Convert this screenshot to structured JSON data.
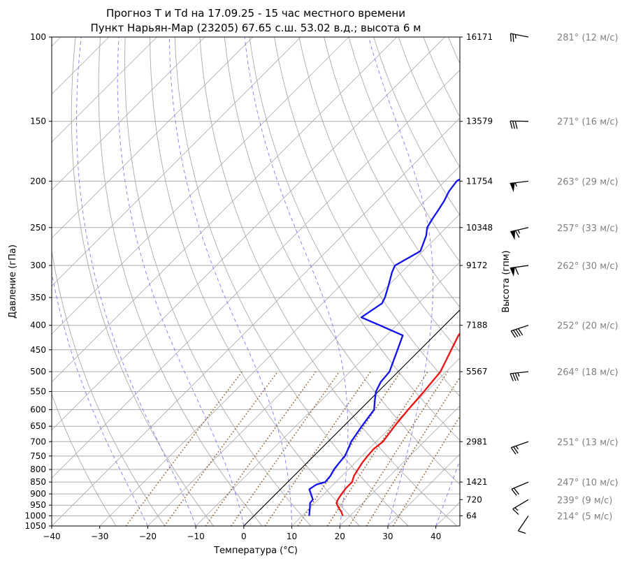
{
  "chart_data": {
    "type": "line",
    "title": "Прогноз T и Td на 17.09.25 - 15 час местного времени",
    "subtitle": "Пункт Нарьян-Мар (23205) 67.65 с.ш. 53.02 в.д.; высота 6 м",
    "xlabel": "Температура (°C)",
    "ylabel": "Давление (гПа)",
    "ylabel_right": "Высота (гпм)",
    "xlim": [
      -40,
      45
    ],
    "ylim": [
      1050,
      100
    ],
    "y_scale": "log",
    "x_ticks": [
      "−40",
      "−30",
      "−20",
      "−10",
      "0",
      "10",
      "20",
      "30",
      "40"
    ],
    "x_tick_values": [
      -40,
      -30,
      -20,
      -10,
      0,
      10,
      20,
      30,
      40
    ],
    "y_ticks": [
      "100",
      "150",
      "200",
      "250",
      "300",
      "350",
      "400",
      "450",
      "500",
      "550",
      "600",
      "650",
      "700",
      "750",
      "800",
      "850",
      "900",
      "950",
      "1000",
      "1050"
    ],
    "y_tick_values": [
      100,
      150,
      200,
      250,
      300,
      350,
      400,
      450,
      500,
      550,
      600,
      650,
      700,
      750,
      800,
      850,
      900,
      950,
      1000,
      1050
    ],
    "skew": 1,
    "grid": true,
    "series": [
      {
        "type": "line",
        "color": "#ee1111",
        "p": [
          1000,
          980,
          960,
          940,
          925,
          900,
          875,
          850,
          825,
          800,
          775,
          750,
          725,
          700,
          650,
          600,
          550,
          500,
          450,
          420,
          400,
          380,
          350,
          320,
          300,
          280,
          260,
          250,
          240,
          230,
          225,
          210,
          200,
          185,
          175,
          165,
          150,
          140,
          130,
          120,
          110,
          100
        ],
        "t": [
          18.5,
          17.3,
          15.8,
          14.5,
          14.1,
          13.7,
          13.4,
          13.4,
          12.5,
          12.0,
          11.5,
          11.2,
          11.0,
          11.4,
          10.6,
          10.0,
          9.5,
          8.8,
          6.5,
          5.0,
          4.5,
          3.5,
          1.3,
          -1.0,
          -3.0,
          -5.0,
          -7.4,
          -9.0,
          -10.5,
          -11.5,
          -11.0,
          -9.0,
          -7.7,
          -6.0,
          -5.3,
          -4.0,
          -4.0,
          -3.0,
          -2.0,
          0.0,
          1.5,
          3.0
        ]
      },
      {
        "type": "line",
        "color": "#1111ee",
        "p": [
          1000,
          980,
          960,
          940,
          925,
          900,
          880,
          860,
          850,
          825,
          800,
          775,
          750,
          725,
          700,
          650,
          600,
          575,
          550,
          525,
          500,
          450,
          420,
          400,
          385,
          360,
          350,
          330,
          310,
          300,
          280,
          260,
          250,
          240,
          230,
          220,
          210,
          200,
          190,
          180,
          170,
          150,
          140,
          130,
          120,
          110,
          100
        ],
        "t": [
          11.5,
          10.7,
          9.9,
          9.0,
          8.9,
          7.3,
          6.0,
          6.5,
          7.8,
          7.6,
          7.0,
          6.7,
          6.5,
          5.7,
          4.8,
          3.8,
          2.9,
          1.2,
          -0.5,
          -1.5,
          -1.8,
          -4.7,
          -6.6,
          -13.5,
          -19.0,
          -17.6,
          -18.2,
          -20.0,
          -22.0,
          -22.8,
          -20.5,
          -22.5,
          -24.0,
          -24.7,
          -25.3,
          -26.0,
          -27.0,
          -27.5,
          -26.0,
          -24.0,
          -22.7,
          -20.0,
          -19.0,
          -18.0,
          -18.0,
          -17.8,
          -16.0
        ]
      }
    ],
    "heights": [
      {
        "p": 100,
        "label": "16171"
      },
      {
        "p": 150,
        "label": "13579"
      },
      {
        "p": 200,
        "label": "11754"
      },
      {
        "p": 250,
        "label": "10348"
      },
      {
        "p": 300,
        "label": "9172"
      },
      {
        "p": 400,
        "label": "7188"
      },
      {
        "p": 500,
        "label": "5567"
      },
      {
        "p": 700,
        "label": "2981"
      },
      {
        "p": 850,
        "label": "1421"
      },
      {
        "p": 925,
        "label": "720"
      },
      {
        "p": 1000,
        "label": "64"
      }
    ],
    "winds": [
      {
        "p": 100,
        "dir": 281,
        "speed": 12,
        "label": "281° (12 м/с)"
      },
      {
        "p": 150,
        "dir": 271,
        "speed": 16,
        "label": "271° (16 м/с)"
      },
      {
        "p": 200,
        "dir": 263,
        "speed": 29,
        "label": "263° (29 м/с)"
      },
      {
        "p": 250,
        "dir": 257,
        "speed": 33,
        "label": "257° (33 м/с)"
      },
      {
        "p": 300,
        "dir": 262,
        "speed": 30,
        "label": "262° (30 м/с)"
      },
      {
        "p": 400,
        "dir": 252,
        "speed": 20,
        "label": "252° (20 м/с)"
      },
      {
        "p": 500,
        "dir": 264,
        "speed": 18,
        "label": "264° (18 м/с)"
      },
      {
        "p": 700,
        "dir": 251,
        "speed": 13,
        "label": "251° (13 м/с)"
      },
      {
        "p": 850,
        "dir": 247,
        "speed": 10,
        "label": "247° (10 м/с)"
      },
      {
        "p": 925,
        "dir": 239,
        "speed": 9,
        "label": "239° (9 м/с)"
      },
      {
        "p": 1000,
        "dir": 214,
        "speed": 5,
        "label": "214° (5 м/с)"
      }
    ],
    "colors": {
      "temperature": "#ee1111",
      "dewpoint": "#1111ee",
      "isobars": "#aaaaaa",
      "isotherms": "#aaaaaa",
      "dry_adiabats": "#aaaaaa",
      "moist_adiabats": "#6f74f5",
      "mixing_ratio": "#8b5a2b",
      "zero_isotherm": "#000000",
      "wind_text": "#808080"
    }
  }
}
